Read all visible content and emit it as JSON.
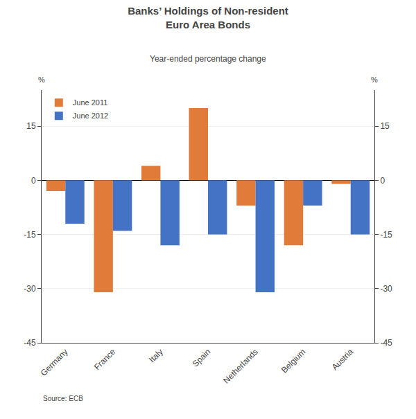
{
  "chart_data": {
    "type": "bar",
    "title": "Banks’ Holdings of Non-resident\nEuro Area Bonds",
    "subtitle": "Year-ended percentage change",
    "categories": [
      "Germany",
      "France",
      "Italy",
      "Spain",
      "Netherlands",
      "Belgium",
      "Austria"
    ],
    "series": [
      {
        "name": "June 2011",
        "color": "#E07B39",
        "values": [
          -3,
          -31,
          4,
          20,
          -7,
          -18,
          -1
        ]
      },
      {
        "name": "June 2012",
        "color": "#4472C4",
        "values": [
          -12,
          -14,
          -18,
          -15,
          -31,
          -7,
          -15
        ]
      }
    ],
    "ylabel": "%",
    "y2label": "%",
    "ylim": [
      -45,
      25
    ],
    "yticks": [
      -45,
      -30,
      -15,
      0,
      15
    ],
    "y2lim": [
      -45,
      25
    ],
    "y2ticks": [
      -45,
      -30,
      -15,
      0,
      15
    ],
    "grid": true,
    "legend": "upper left",
    "source": "Source: ECB"
  }
}
